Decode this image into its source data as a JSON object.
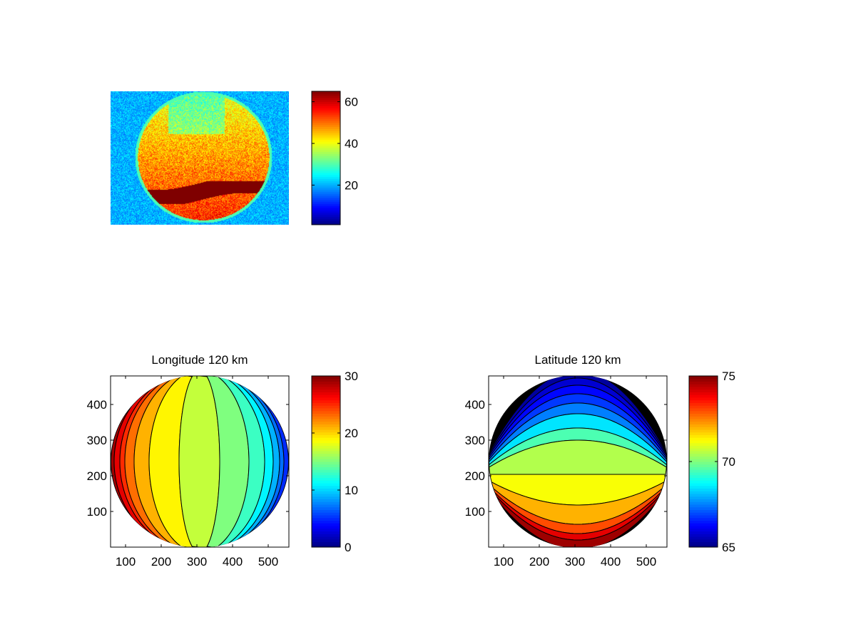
{
  "chart_data": [
    {
      "type": "heatmap",
      "title": "",
      "description_label": "",
      "colorbar": {
        "min": 1,
        "max": 65,
        "ticks": [
          "20",
          "40",
          "60"
        ],
        "tick_values": [
          20,
          40,
          60
        ],
        "colormap": "jet"
      }
    },
    {
      "type": "heatmap",
      "title": "Longitude 120 km",
      "xlim": [
        58,
        558
      ],
      "ylim": [
        0,
        480
      ],
      "xticks": [
        "100",
        "200",
        "300",
        "400",
        "500"
      ],
      "xtick_values": [
        100,
        200,
        300,
        400,
        500
      ],
      "yticks": [
        "100",
        "200",
        "300",
        "400"
      ],
      "ytick_values": [
        100,
        200,
        300,
        400
      ],
      "contour_levels_left_to_right": [
        29,
        27,
        25,
        23,
        21,
        19,
        17,
        15,
        13,
        11,
        9,
        7,
        5
      ],
      "colorbar": {
        "min": 0,
        "max": 30,
        "ticks": [
          "0",
          "10",
          "20",
          "30"
        ],
        "tick_values": [
          0,
          10,
          20,
          30
        ],
        "colormap": "jet"
      }
    },
    {
      "type": "heatmap",
      "title": "Latitude 120 km",
      "xlim": [
        58,
        558
      ],
      "ylim": [
        0,
        480
      ],
      "xticks": [
        "100",
        "200",
        "300",
        "400",
        "500"
      ],
      "xtick_values": [
        100,
        200,
        300,
        400,
        500
      ],
      "yticks": [
        "100",
        "200",
        "300",
        "400"
      ],
      "ytick_values": [
        100,
        200,
        300,
        400
      ],
      "contour_levels_top_to_bottom": [
        65.3,
        65.8,
        66.3,
        66.8,
        67.5,
        68.5,
        69.5,
        70.5,
        71.2,
        72,
        73,
        74,
        74.7
      ],
      "colorbar": {
        "min": 65,
        "max": 75,
        "ticks": [
          "65",
          "70",
          "75"
        ],
        "tick_values": [
          65,
          70,
          75
        ],
        "colormap": "jet"
      }
    }
  ]
}
